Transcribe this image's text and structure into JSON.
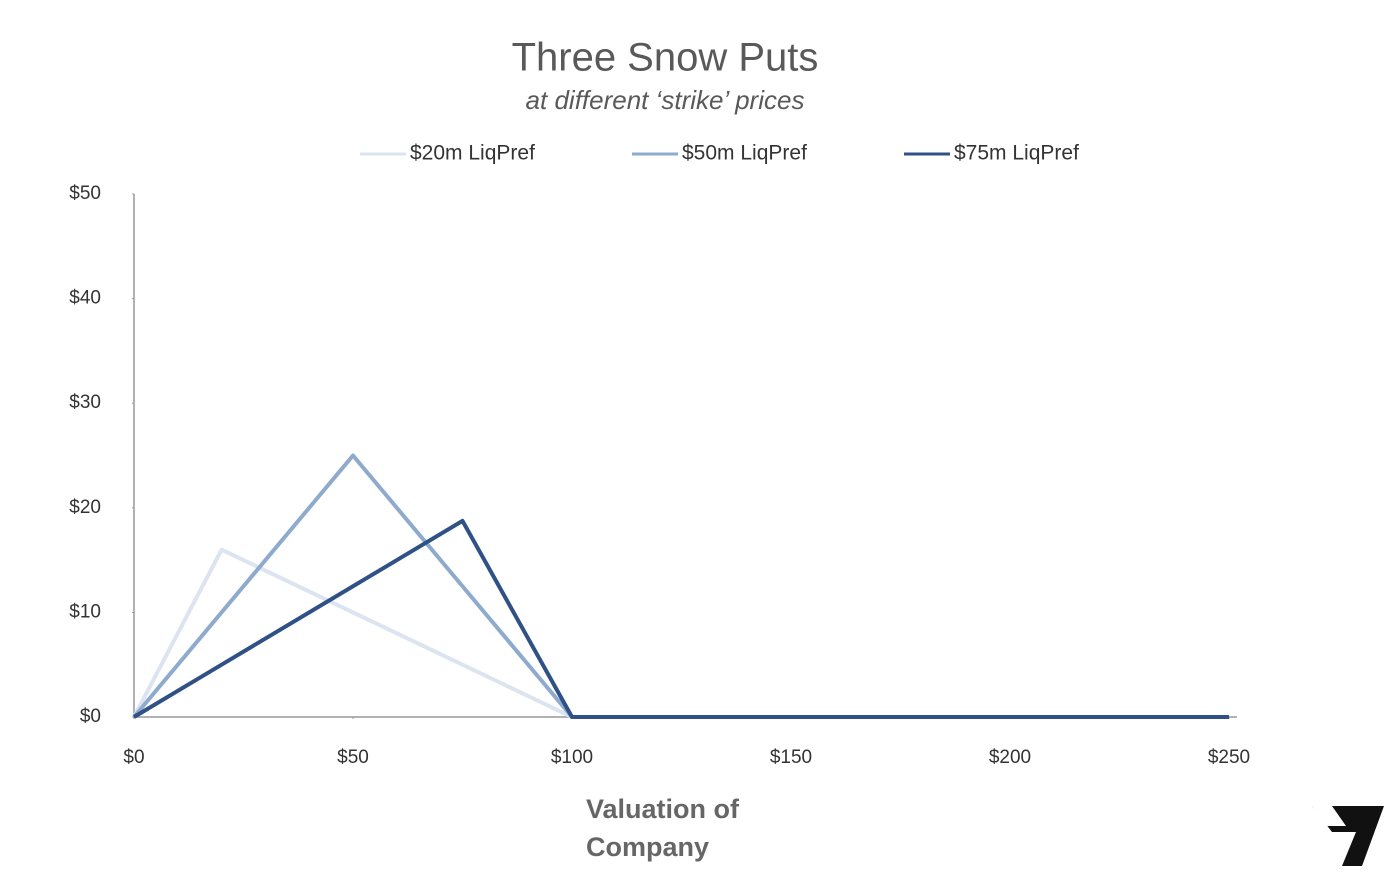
{
  "chart_data": {
    "type": "line",
    "title": "Three Snow Puts",
    "subtitle": "at different ‘strike’ prices",
    "x_label": "Valuation of Company",
    "x": [
      0,
      20,
      50,
      75,
      100,
      250
    ],
    "series": [
      {
        "name": "$20m LiqPref",
        "color": "#dbe4f0",
        "values": [
          0,
          16,
          10,
          5,
          0,
          0
        ]
      },
      {
        "name": "$50m LiqPref",
        "color": "#8eaacd",
        "values": [
          0,
          10,
          25,
          12.5,
          0,
          0
        ]
      },
      {
        "name": "$75m LiqPref",
        "color": "#2f5185",
        "values": [
          0,
          5,
          12.5,
          18.75,
          0,
          0
        ]
      }
    ],
    "xlim": [
      0,
      250
    ],
    "xticks": [
      {
        "value": 0,
        "label": "$0"
      },
      {
        "value": 50,
        "label": "$50"
      },
      {
        "value": 100,
        "label": "$100"
      },
      {
        "value": 150,
        "label": "$150"
      },
      {
        "value": 200,
        "label": "$200"
      },
      {
        "value": 250,
        "label": "$250"
      }
    ],
    "ylim": [
      0,
      50
    ],
    "yticks": [
      {
        "value": 0,
        "label": "$0"
      },
      {
        "value": 10,
        "label": "$10"
      },
      {
        "value": 20,
        "label": "$20"
      },
      {
        "value": 30,
        "label": "$30"
      },
      {
        "value": 40,
        "label": "$40"
      },
      {
        "value": 50,
        "label": "$50"
      }
    ],
    "legend": "top"
  }
}
